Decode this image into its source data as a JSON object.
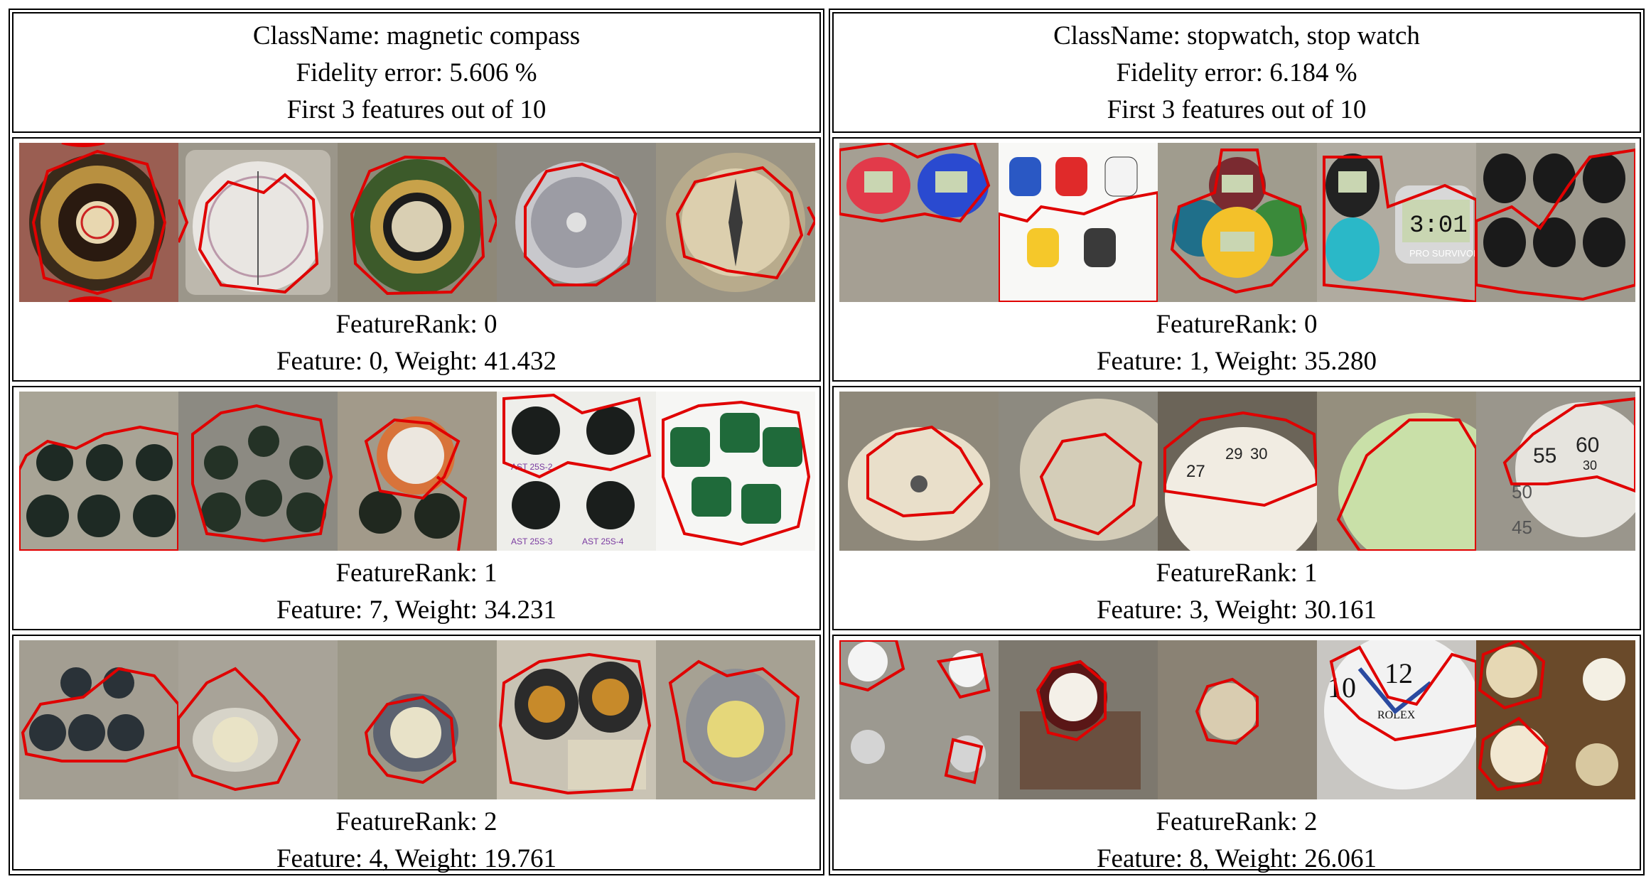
{
  "panels": [
    {
      "class_label": "ClassName: magnetic compass",
      "fidelity_label": "Fidelity error: 5.606 %",
      "features_label": "First 3 features out of 10",
      "rows": [
        {
          "rank_label": "FeatureRank: 0",
          "feature_label": "Feature: 0, Weight: 41.432"
        },
        {
          "rank_label": "FeatureRank: 1",
          "feature_label": "Feature: 7, Weight: 34.231"
        },
        {
          "rank_label": "FeatureRank: 2",
          "feature_label": "Feature: 4, Weight: 19.761"
        }
      ]
    },
    {
      "class_label": "ClassName: stopwatch, stop watch",
      "fidelity_label": "Fidelity error: 6.184 %",
      "features_label": "First 3 features out of 10",
      "rows": [
        {
          "rank_label": "FeatureRank: 0",
          "feature_label": "Feature: 1, Weight: 35.280"
        },
        {
          "rank_label": "FeatureRank: 1",
          "feature_label": "Feature: 3, Weight: 30.161"
        },
        {
          "rank_label": "FeatureRank: 2",
          "feature_label": "Feature: 8, Weight: 26.061"
        }
      ]
    }
  ],
  "thumb_text": {
    "compass_label_a": "AST 25S-2",
    "compass_label_b": "AST 25S-3",
    "compass_label_c": "AST 25S-4",
    "stopwatch_brand": "PRO SURVIVOR",
    "stopwatch_display": "3:01",
    "clock_brand": "ROLEX",
    "dial_numbers": [
      "55",
      "60",
      "30",
      "50",
      "45",
      "27",
      "29",
      "30"
    ]
  },
  "colors": {
    "boundary": "#e00000",
    "dim_overlay": "#8c8676"
  }
}
